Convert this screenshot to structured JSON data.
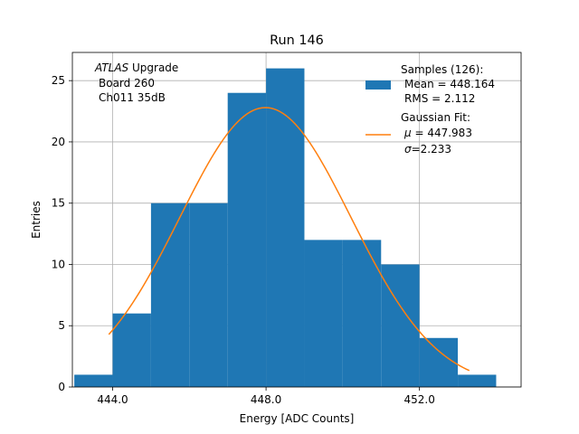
{
  "chart_data": {
    "type": "bar",
    "title": "Run 146",
    "xlabel": "Energy [ADC Counts]",
    "ylabel": "Entries",
    "xlim": [
      442.95,
      454.65
    ],
    "ylim": [
      0,
      27.3
    ],
    "grid": true,
    "bin_edges": [
      443,
      444,
      445,
      446,
      447,
      448,
      449,
      450,
      451,
      452,
      453,
      454
    ],
    "counts": [
      1,
      6,
      15,
      15,
      24,
      26,
      12,
      12,
      10,
      4,
      1
    ],
    "x_ticks": [
      444,
      448,
      452
    ],
    "x_tick_labels": [
      "444.0",
      "448.0",
      "452.0"
    ],
    "y_ticks": [
      0,
      5,
      10,
      15,
      20,
      25
    ],
    "y_tick_labels": [
      "0",
      "5",
      "10",
      "15",
      "20",
      "25"
    ],
    "bar_color": "#1f77b4",
    "fit": {
      "mu": 447.983,
      "sigma": 2.233,
      "amplitude": 22.8,
      "x_range": [
        443.9,
        453.3
      ],
      "color": "#ff7f0e"
    },
    "annotation": {
      "atlas": "ATLAS",
      "upgrade": " Upgrade",
      "line2": "Board 260",
      "line3": "Ch011 35dB"
    },
    "legend": {
      "position": "top-right",
      "samples_title": "Samples (126):",
      "samples_mean": "Mean = 448.164",
      "samples_rms": "RMS = 2.112",
      "fit_title": "Gaussian Fit:",
      "fit_mu_symbol": "μ",
      "fit_mu_value": " = 447.983",
      "fit_sigma_symbol": "σ",
      "fit_sigma_value": "=2.233"
    }
  }
}
